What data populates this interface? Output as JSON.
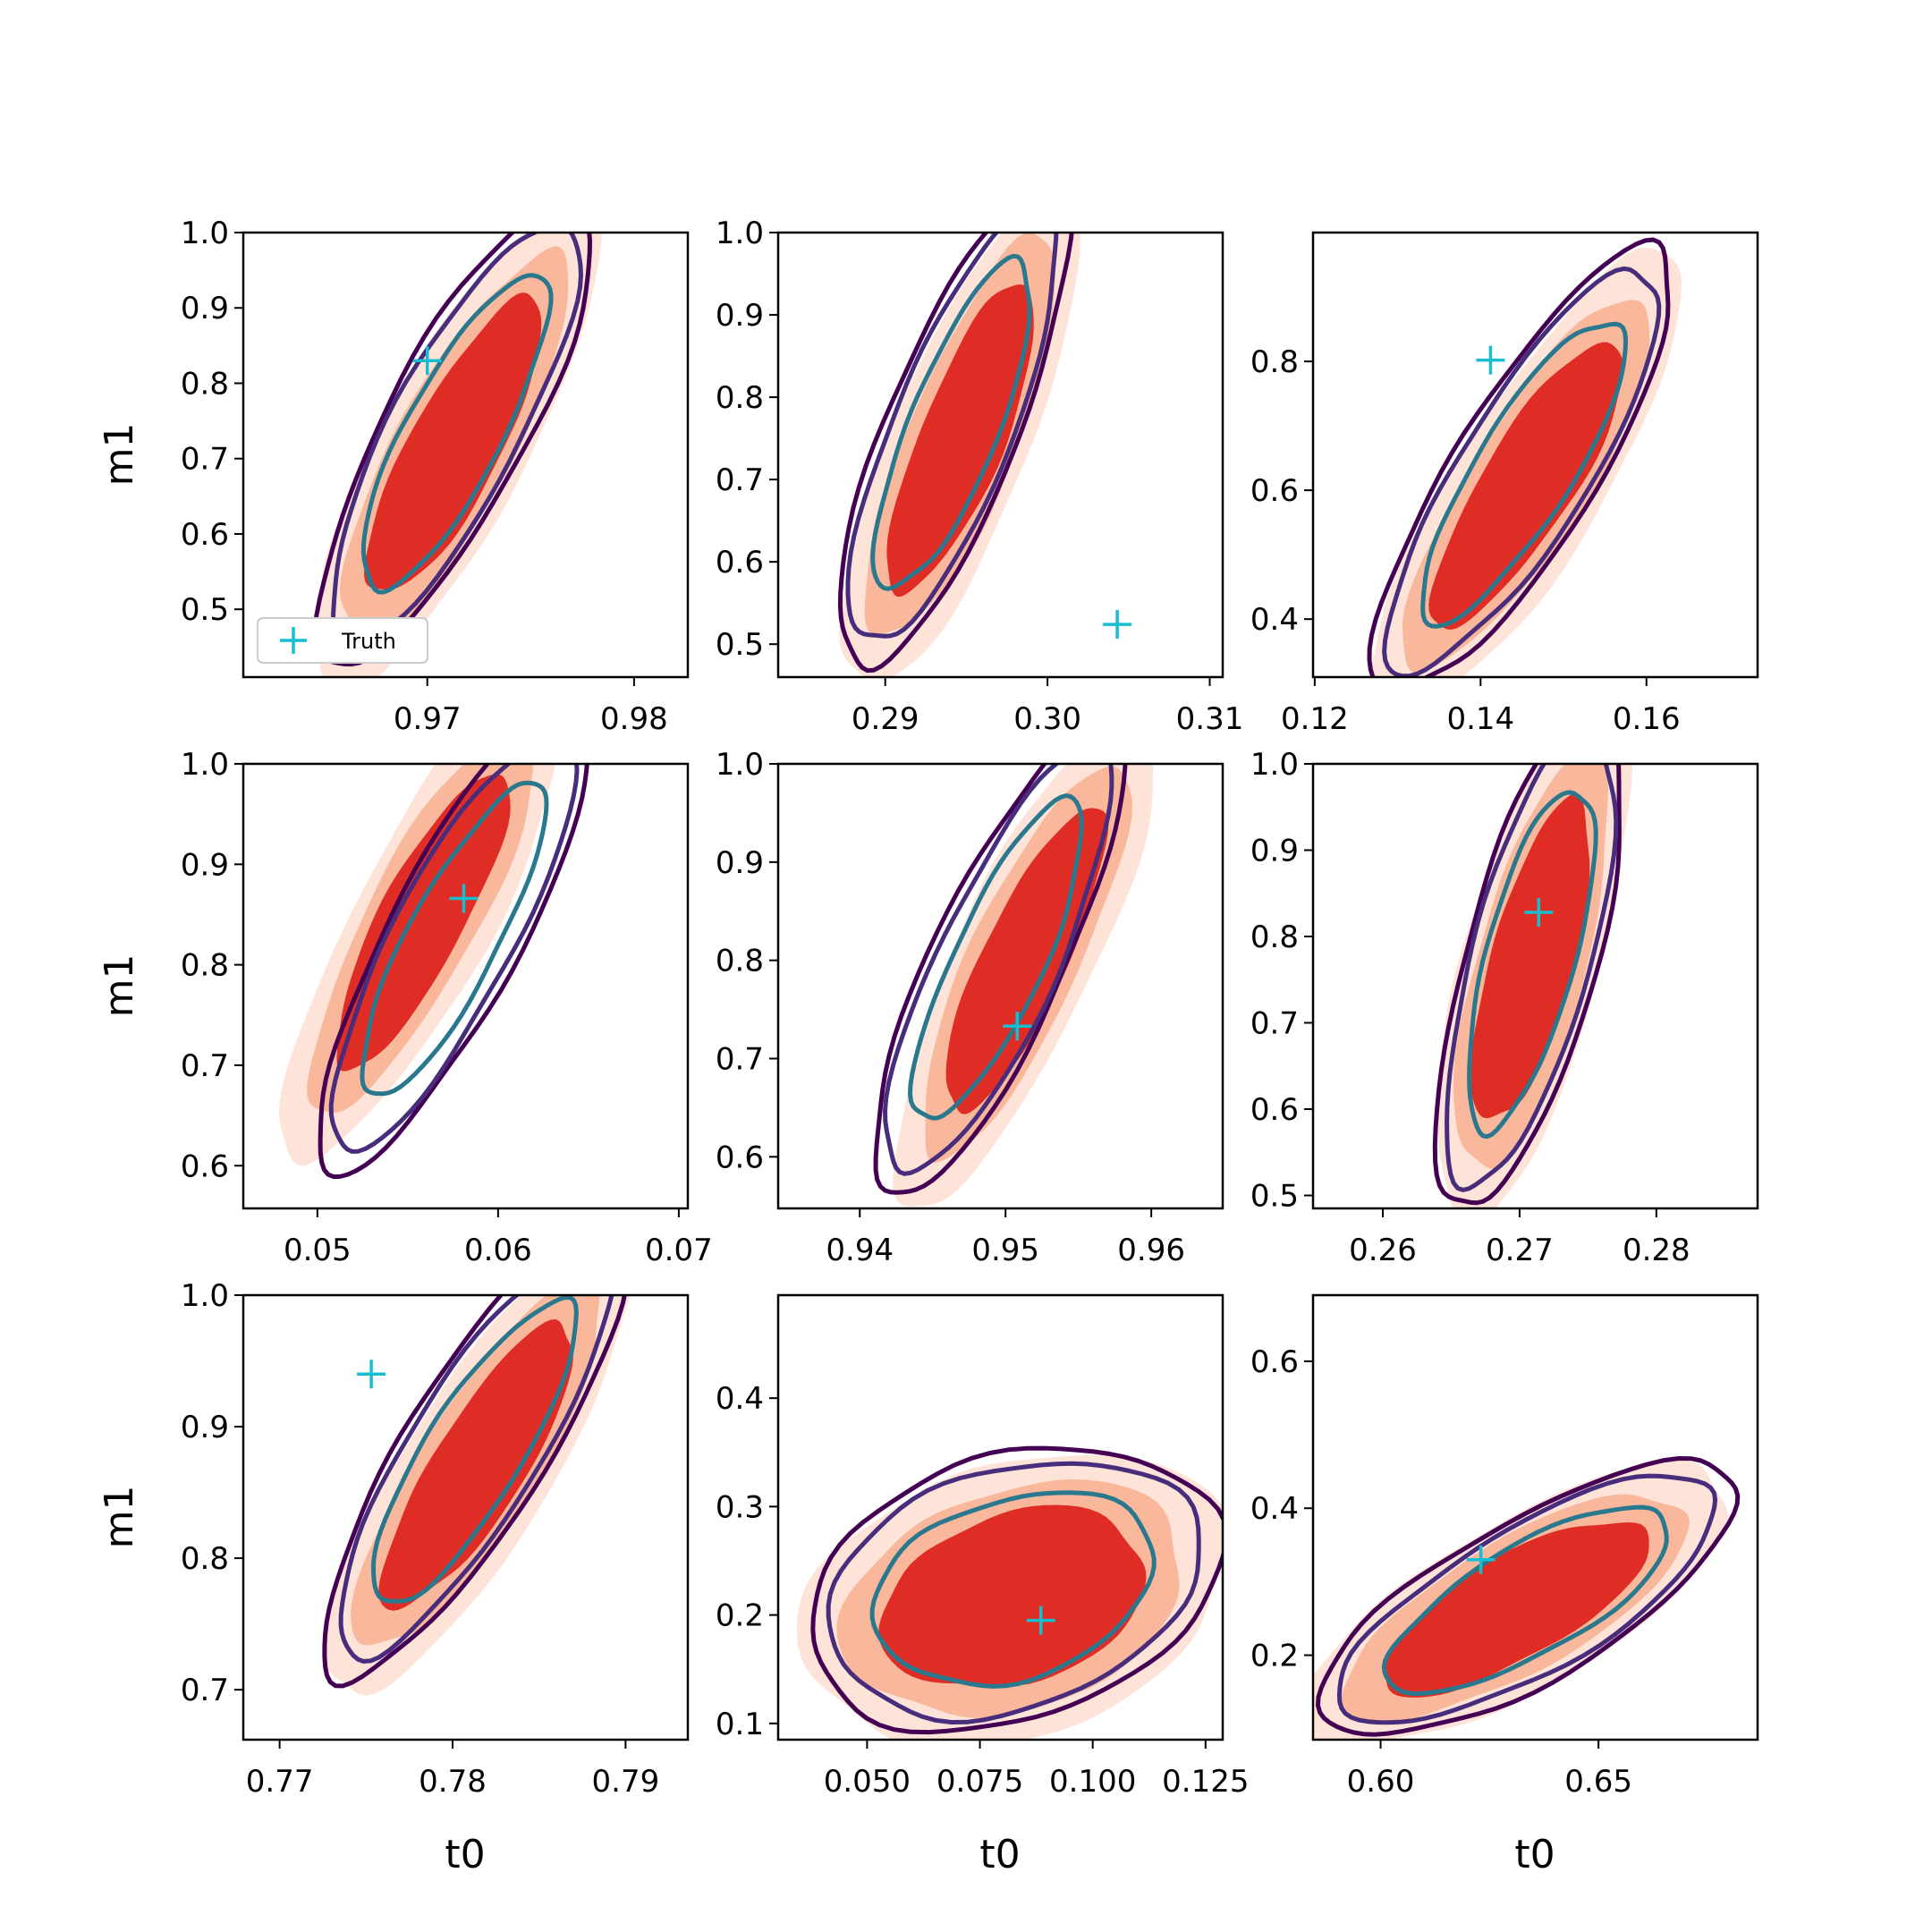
{
  "colors": {
    "fill_outer": "#fee3d8",
    "fill_mid": "#f9b89c",
    "fill_inner": "#df2d26",
    "line_outer": "#440154",
    "line_mid": "#472d7b",
    "line_inner": "#2a788e",
    "truth": "#17becf"
  },
  "figure": {
    "xlabel": "t0",
    "ylabel": "m1",
    "legend_label": "Truth"
  },
  "chart_data": [
    {
      "type": "contour",
      "xlim": [
        0.9611,
        0.9826
      ],
      "ylim": [
        0.41,
        1.0
      ],
      "xticks": [
        0.97,
        0.98
      ],
      "xtick_labels": [
        "0.97",
        "0.98"
      ],
      "yticks": [
        0.5,
        0.6,
        0.7,
        0.8,
        0.9,
        1.0
      ],
      "ytick_labels": [
        "0.5",
        "0.6",
        "0.7",
        "0.8",
        "0.9",
        "1.0"
      ],
      "truth": [
        0.97,
        0.83
      ],
      "angle": -62,
      "a": 0.55,
      "b": 0.15,
      "fill_center": [
        0.9713,
        0.715
      ],
      "line_center": [
        0.9713,
        0.735
      ],
      "legend": "lower-left"
    },
    {
      "type": "contour",
      "xlim": [
        0.2834,
        0.3108
      ],
      "ylim": [
        0.46,
        1.0
      ],
      "xticks": [
        0.29,
        0.3,
        0.31
      ],
      "xtick_labels": [
        "0.29",
        "0.30",
        "0.31"
      ],
      "yticks": [
        0.5,
        0.6,
        0.7,
        0.8,
        0.9,
        1.0
      ],
      "ytick_labels": [
        "0.5",
        "0.6",
        "0.7",
        "0.8",
        "0.9",
        "1.0"
      ],
      "truth": [
        0.3043,
        0.524
      ],
      "angle": -68,
      "a": 0.55,
      "b": 0.14,
      "fill_center": [
        0.2947,
        0.75
      ],
      "line_center": [
        0.2942,
        0.765
      ]
    },
    {
      "type": "contour",
      "xlim": [
        0.1198,
        0.1734
      ],
      "ylim": [
        0.31,
        1.0
      ],
      "xticks": [
        0.12,
        0.14,
        0.16
      ],
      "xtick_labels": [
        "0.12",
        "0.14",
        "0.16"
      ],
      "yticks": [
        0.4,
        0.6,
        0.8
      ],
      "ytick_labels": [
        "0.4",
        "0.6",
        "0.8"
      ],
      "truth": [
        0.1412,
        0.802
      ],
      "angle": -58,
      "a": 0.55,
      "b": 0.15,
      "fill_center": [
        0.1457,
        0.61
      ],
      "line_center": [
        0.1452,
        0.63
      ]
    },
    {
      "type": "contour",
      "xlim": [
        0.0459,
        0.0705
      ],
      "ylim": [
        0.5575,
        1.0
      ],
      "xticks": [
        0.05,
        0.06,
        0.07
      ],
      "xtick_labels": [
        "0.05",
        "0.06",
        "0.07"
      ],
      "yticks": [
        0.6,
        0.7,
        0.8,
        0.9,
        1.0
      ],
      "ytick_labels": [
        "0.6",
        "0.7",
        "0.8",
        "0.9",
        "1.0"
      ],
      "truth": [
        0.0581,
        0.866
      ],
      "angle": -62,
      "a": 0.55,
      "b": 0.14,
      "fill_center": [
        0.0558,
        0.845
      ],
      "line_center": [
        0.0575,
        0.825
      ]
    },
    {
      "type": "contour",
      "xlim": [
        0.9344,
        0.9649
      ],
      "ylim": [
        0.5475,
        1.0
      ],
      "xticks": [
        0.94,
        0.95,
        0.96
      ],
      "xtick_labels": [
        "0.94",
        "0.95",
        "0.96"
      ],
      "yticks": [
        0.6,
        0.7,
        0.8,
        0.9,
        1.0
      ],
      "ytick_labels": [
        "0.6",
        "0.7",
        "0.8",
        "0.9",
        "1.0"
      ],
      "truth": [
        0.9508,
        0.733
      ],
      "angle": -65,
      "a": 0.55,
      "b": 0.14,
      "fill_center": [
        0.9513,
        0.8
      ],
      "line_center": [
        0.9495,
        0.8
      ]
    },
    {
      "type": "contour",
      "xlim": [
        0.2549,
        0.2874
      ],
      "ylim": [
        0.485,
        1.0
      ],
      "xticks": [
        0.26,
        0.27,
        0.28
      ],
      "xtick_labels": [
        "0.26",
        "0.27",
        "0.28"
      ],
      "yticks": [
        0.5,
        0.6,
        0.7,
        0.8,
        0.9,
        1.0
      ],
      "ytick_labels": [
        "0.5",
        "0.6",
        "0.7",
        "0.8",
        "0.9",
        "1.0"
      ],
      "truth": [
        0.2714,
        0.828
      ],
      "angle": -75,
      "a": 0.55,
      "b": 0.14,
      "fill_center": [
        0.2709,
        0.77
      ],
      "line_center": [
        0.2708,
        0.775
      ]
    },
    {
      "type": "contour",
      "xlim": [
        0.7679,
        0.7936
      ],
      "ylim": [
        0.662,
        1.0
      ],
      "xticks": [
        0.77,
        0.78,
        0.79
      ],
      "xtick_labels": [
        "0.77",
        "0.78",
        "0.79"
      ],
      "yticks": [
        0.7,
        0.8,
        0.9,
        1.0
      ],
      "ytick_labels": [
        "0.7",
        "0.8",
        "0.9",
        "1.0"
      ],
      "truth": [
        0.7753,
        0.94
      ],
      "angle": -58,
      "a": 0.55,
      "b": 0.15,
      "fill_center": [
        0.7815,
        0.87
      ],
      "line_center": [
        0.7812,
        0.88
      ]
    },
    {
      "type": "contour",
      "xlim": [
        0.0303,
        0.1288
      ],
      "ylim": [
        0.085,
        0.495
      ],
      "xticks": [
        0.05,
        0.075,
        0.1,
        0.125
      ],
      "xtick_labels": [
        "0.050",
        "0.075",
        "0.100",
        "0.125"
      ],
      "yticks": [
        0.1,
        0.2,
        0.3,
        0.4
      ],
      "ytick_labels": [
        "0.1",
        "0.2",
        "0.3",
        "0.4"
      ],
      "truth": [
        0.0885,
        0.195
      ],
      "angle": -18,
      "a": 0.45,
      "b": 0.28,
      "fill_center": [
        0.0825,
        0.215
      ],
      "line_center": [
        0.0825,
        0.225
      ]
    },
    {
      "type": "contour",
      "xlim": [
        0.5845,
        0.6865
      ],
      "ylim": [
        0.085,
        0.69
      ],
      "xticks": [
        0.6,
        0.65
      ],
      "xtick_labels": [
        "0.60",
        "0.65"
      ],
      "yticks": [
        0.2,
        0.4,
        0.6
      ],
      "ytick_labels": [
        "0.2",
        "0.4",
        "0.6"
      ],
      "truth": [
        0.623,
        0.33
      ],
      "angle": -30,
      "a": 0.5,
      "b": 0.17,
      "fill_center": [
        0.631,
        0.265
      ],
      "line_center": [
        0.634,
        0.275
      ]
    }
  ]
}
